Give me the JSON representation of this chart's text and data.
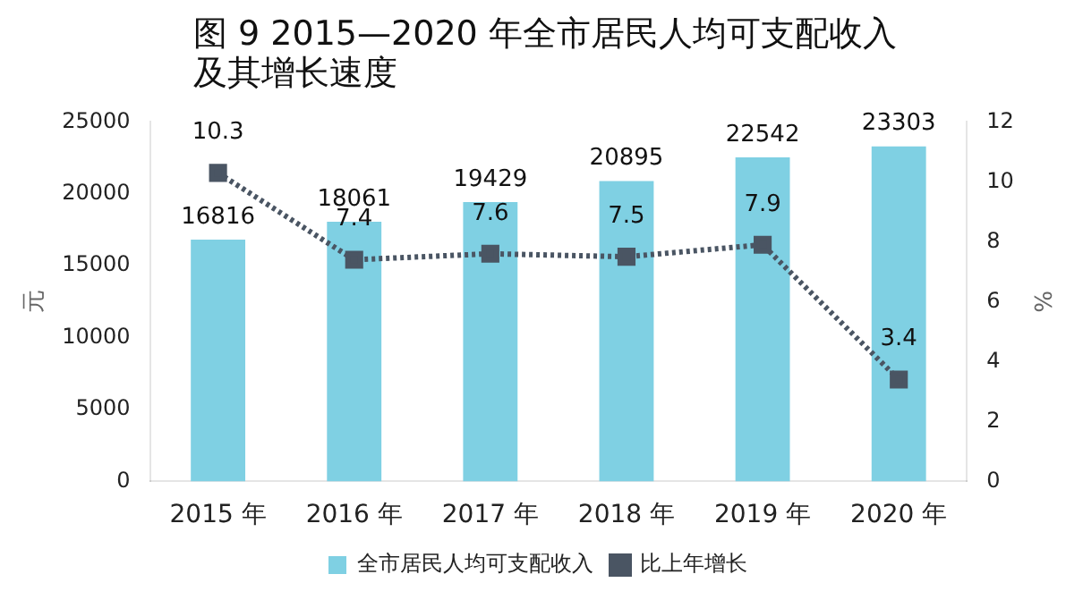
{
  "chart_data": {
    "type": "bar",
    "title": "图 9 2015—2020 年全市居民人均可支配收入及其增长速度",
    "categories": [
      "2015 年",
      "2016 年",
      "2017 年",
      "2018 年",
      "2019 年",
      "2020 年"
    ],
    "series": [
      {
        "name": "全市居民人均可支配收入",
        "color": "#7fd0e3",
        "values": [
          16816,
          18061,
          19429,
          20895,
          22542,
          23303
        ]
      },
      {
        "name": "比上年增长",
        "type": "line",
        "axis": "y2",
        "color": "#4a5563",
        "marker": "square",
        "line_style": "dotted",
        "values": [
          10.3,
          7.4,
          7.6,
          7.5,
          7.9,
          3.4
        ]
      }
    ],
    "ylabel": "元",
    "y2label": "%",
    "ylim": [
      0,
      25000
    ],
    "yticks": [
      0,
      5000,
      10000,
      15000,
      20000,
      25000
    ],
    "y2lim": [
      0,
      12
    ],
    "y2ticks": [
      0,
      2,
      4,
      6,
      8,
      10,
      12
    ],
    "data_labels": true,
    "grid": false,
    "legend": "bottom"
  }
}
